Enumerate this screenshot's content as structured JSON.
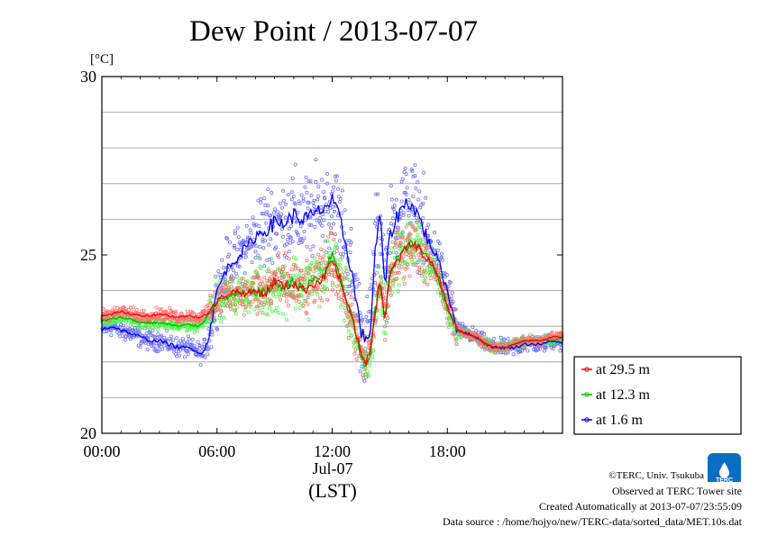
{
  "chart_data": {
    "type": "scatter",
    "title": "Dew Point / 2013-07-07",
    "ylabel": "[°C]",
    "xlabel_date": "Jul-07",
    "xlabel_unit": "(LST)",
    "xlim": [
      0,
      24
    ],
    "ylim": [
      20,
      30
    ],
    "yticks": [
      20,
      25,
      30
    ],
    "y_gridlines": [
      21,
      22,
      23,
      24,
      26,
      27,
      28,
      29
    ],
    "xticks": [
      0,
      6,
      12,
      18
    ],
    "xtick_labels": [
      "00:00",
      "06:00",
      "12:00",
      "18:00"
    ],
    "grid": true,
    "legend_position": "bottom-right-outside",
    "series": [
      {
        "name": "at 29.5 m",
        "color": "#ff0000",
        "scatter_color": "#ff7070",
        "x": [
          0,
          0.5,
          1,
          1.5,
          2,
          2.5,
          3,
          3.5,
          4,
          4.5,
          5,
          5.25,
          5.5,
          5.75,
          6,
          6.5,
          7,
          7.5,
          8,
          8.5,
          9,
          9.5,
          10,
          10.5,
          11,
          11.5,
          12,
          12.25,
          12.5,
          12.75,
          13,
          13.25,
          13.5,
          13.75,
          14,
          14.25,
          14.5,
          14.75,
          15,
          15.25,
          15.5,
          15.75,
          16,
          16.5,
          17,
          17.5,
          18,
          18.5,
          19,
          19.5,
          20,
          20.5,
          21,
          21.5,
          22,
          22.5,
          23,
          23.5,
          24
        ],
        "y": [
          23.3,
          23.35,
          23.4,
          23.35,
          23.3,
          23.3,
          23.35,
          23.3,
          23.25,
          23.3,
          23.25,
          23.3,
          23.35,
          23.5,
          23.7,
          23.9,
          24.0,
          23.9,
          24.0,
          23.9,
          24.3,
          24.1,
          24.2,
          24.0,
          24.2,
          24.3,
          24.9,
          24.5,
          24.2,
          23.6,
          23.3,
          22.8,
          22.2,
          22.0,
          22.4,
          23.5,
          24.3,
          23.2,
          24.4,
          24.7,
          24.9,
          25.1,
          25.3,
          25.2,
          24.9,
          24.5,
          23.6,
          22.9,
          22.8,
          22.7,
          22.5,
          22.4,
          22.4,
          22.5,
          22.6,
          22.6,
          22.6,
          22.7,
          22.7
        ]
      },
      {
        "name": "at 12.3 m",
        "color": "#00b000",
        "scatter_color": "#40ff40",
        "x": [
          0,
          0.5,
          1,
          1.5,
          2,
          2.5,
          3,
          3.5,
          4,
          4.5,
          5,
          5.25,
          5.5,
          5.75,
          6,
          6.5,
          7,
          7.5,
          8,
          8.5,
          9,
          9.5,
          10,
          10.5,
          11,
          11.5,
          12,
          12.25,
          12.5,
          12.75,
          13,
          13.25,
          13.5,
          13.75,
          14,
          14.25,
          14.5,
          14.75,
          15,
          15.25,
          15.5,
          15.75,
          16,
          16.5,
          17,
          17.5,
          18,
          18.5,
          19,
          19.5,
          20,
          20.5,
          21,
          21.5,
          22,
          22.5,
          23,
          23.5,
          24
        ],
        "y": [
          23.15,
          23.2,
          23.25,
          23.2,
          23.1,
          23.1,
          23.1,
          23.05,
          23.0,
          23.05,
          23.0,
          23.1,
          23.3,
          23.5,
          23.7,
          23.8,
          23.9,
          23.9,
          24.0,
          23.9,
          24.2,
          24.1,
          24.3,
          24.0,
          24.3,
          24.4,
          25.0,
          24.6,
          24.2,
          23.6,
          23.3,
          22.7,
          22.1,
          21.9,
          22.3,
          23.5,
          24.2,
          23.1,
          24.5,
          24.8,
          25.0,
          25.1,
          25.3,
          25.2,
          24.9,
          24.4,
          23.5,
          22.9,
          22.8,
          22.7,
          22.5,
          22.4,
          22.4,
          22.5,
          22.6,
          22.6,
          22.6,
          22.6,
          22.7
        ]
      },
      {
        "name": "at 1.6 m",
        "color": "#0000ff",
        "scatter_color": "#7070ff",
        "x": [
          0,
          0.5,
          1,
          1.5,
          2,
          2.5,
          3,
          3.5,
          4,
          4.5,
          5,
          5.25,
          5.5,
          5.75,
          6,
          6.5,
          7,
          7.5,
          8,
          8.5,
          9,
          9.5,
          10,
          10.5,
          11,
          11.5,
          12,
          12.25,
          12.5,
          12.75,
          13,
          13.25,
          13.5,
          13.75,
          14,
          14.25,
          14.5,
          14.75,
          15,
          15.25,
          15.5,
          15.75,
          16,
          16.5,
          17,
          17.5,
          18,
          18.5,
          19,
          19.5,
          20,
          20.5,
          21,
          21.5,
          22,
          22.5,
          23,
          23.5,
          24
        ],
        "y": [
          22.9,
          23.0,
          22.9,
          22.8,
          22.7,
          22.6,
          22.6,
          22.5,
          22.4,
          22.4,
          22.3,
          22.2,
          22.6,
          23.2,
          24.0,
          24.6,
          24.9,
          25.2,
          25.5,
          25.7,
          25.9,
          25.9,
          26.1,
          26.0,
          26.1,
          26.3,
          26.5,
          26.2,
          25.8,
          25.2,
          24.6,
          23.7,
          22.9,
          22.5,
          23.0,
          25.2,
          26.1,
          24.1,
          25.5,
          25.9,
          26.2,
          26.4,
          26.5,
          26.1,
          25.4,
          24.9,
          24.0,
          22.9,
          22.8,
          22.7,
          22.5,
          22.4,
          22.4,
          22.4,
          22.5,
          22.5,
          22.5,
          22.6,
          22.5
        ]
      }
    ]
  },
  "credits": {
    "line1": "©TERC, Univ. Tsukuba",
    "line2": "Observed at TERC Tower site",
    "line3": "Created Automatically at 2013-07-07/23:55:09",
    "line4": "Data source : /home/hojyo/new/TERC-data/sorted_data/MET.10s.dat"
  },
  "logo": {
    "text": "TERC",
    "color": "#0a6fc2"
  }
}
